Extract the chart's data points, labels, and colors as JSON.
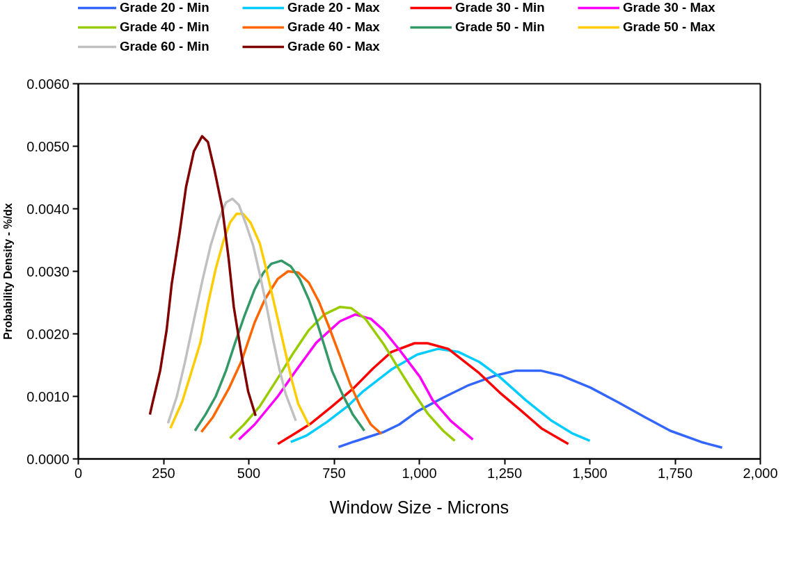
{
  "chart_data": {
    "type": "line",
    "xlabel": "Window Size - Microns",
    "ylabel": "Probability Density - %/dx",
    "legend": "top",
    "grid": false,
    "marker": "none",
    "line_style": "solid",
    "xlim": [
      0,
      2000
    ],
    "ylim": [
      0,
      0.006
    ],
    "xticks": [
      0,
      250,
      500,
      750,
      {
        "value": 1000,
        "label": "1,000"
      },
      {
        "value": 1250,
        "label": "1,250"
      },
      {
        "value": 1500,
        "label": "1,500"
      },
      {
        "value": 1750,
        "label": "1,750"
      },
      {
        "value": 2000,
        "label": "2,000"
      }
    ],
    "yticks": [
      {
        "value": 0,
        "label": "0.0000"
      },
      {
        "value": 0.001,
        "label": "0.0010"
      },
      {
        "value": 0.002,
        "label": "0.0020"
      },
      {
        "value": 0.003,
        "label": "0.0030"
      },
      {
        "value": 0.004,
        "label": "0.0040"
      },
      {
        "value": 0.005,
        "label": "0.0050"
      },
      {
        "value": 0.006,
        "label": "0.0060"
      }
    ],
    "series": [
      {
        "name": "Grade 20 - Min",
        "color": "#3366ff",
        "x": [
          763,
          805,
          850,
          895,
          941,
          994,
          1070,
          1145,
          1221,
          1282,
          1358,
          1418,
          1502,
          1585,
          1661,
          1736,
          1827,
          1888
        ],
        "values": [
          0.00019,
          0.00027,
          0.00035,
          0.00043,
          0.00055,
          0.00076,
          0.00098,
          0.00118,
          0.00133,
          0.00141,
          0.00141,
          0.00133,
          0.00114,
          0.0009,
          0.00067,
          0.00045,
          0.00027,
          0.00018
        ]
      },
      {
        "name": "Grade 20 - Max",
        "color": "#00ccff",
        "x": [
          623,
          668,
          729,
          789,
          835,
          918,
          994,
          1055,
          1115,
          1176,
          1236,
          1312,
          1388,
          1448,
          1500
        ],
        "values": [
          0.00027,
          0.00037,
          0.00059,
          0.00084,
          0.00108,
          0.00143,
          0.00167,
          0.00176,
          0.00171,
          0.00155,
          0.00131,
          0.00094,
          0.00061,
          0.00041,
          0.00029
        ]
      },
      {
        "name": "Grade 30 - Min",
        "color": "#ff0000",
        "x": [
          585,
          630,
          683,
          744,
          805,
          865,
          918,
          986,
          1024,
          1085,
          1176,
          1236,
          1297,
          1358,
          1437
        ],
        "values": [
          0.00024,
          0.00039,
          0.00057,
          0.00084,
          0.00112,
          0.00145,
          0.00171,
          0.00185,
          0.00185,
          0.00176,
          0.00137,
          0.00106,
          0.00078,
          0.00049,
          0.00024
        ]
      },
      {
        "name": "Grade 30 - Max",
        "color": "#ff00ff",
        "x": [
          471,
          517,
          585,
          638,
          698,
          767,
          812,
          858,
          895,
          941,
          1002,
          1039,
          1092,
          1157
        ],
        "values": [
          0.00031,
          0.00055,
          0.001,
          0.00141,
          0.00186,
          0.0022,
          0.00231,
          0.00224,
          0.00206,
          0.00175,
          0.00131,
          0.00094,
          0.00061,
          0.00031
        ]
      },
      {
        "name": "Grade 40 - Min",
        "color": "#99cc00",
        "x": [
          445,
          486,
          532,
          585,
          630,
          676,
          721,
          767,
          801,
          842,
          895,
          941,
          979,
          1024,
          1070,
          1104
        ],
        "values": [
          0.00033,
          0.00055,
          0.00084,
          0.00129,
          0.00169,
          0.00206,
          0.00231,
          0.00243,
          0.00241,
          0.00224,
          0.00184,
          0.00143,
          0.0011,
          0.00073,
          0.00045,
          0.00029
        ]
      },
      {
        "name": "Grade 40 - Max",
        "color": "#ff6600",
        "x": [
          361,
          395,
          441,
          479,
          517,
          547,
          585,
          615,
          645,
          676,
          706,
          736,
          767,
          797,
          827,
          858,
          889
        ],
        "values": [
          0.00043,
          0.00067,
          0.00112,
          0.00157,
          0.00218,
          0.00255,
          0.00288,
          0.003,
          0.00298,
          0.00282,
          0.00251,
          0.0021,
          0.00165,
          0.0012,
          0.00084,
          0.00055,
          0.0004
        ]
      },
      {
        "name": "Grade 50 - Min",
        "color": "#339966",
        "x": [
          342,
          373,
          403,
          433,
          460,
          486,
          517,
          543,
          566,
          596,
          623,
          649,
          676,
          698,
          721,
          744,
          774,
          805,
          839
        ],
        "values": [
          0.00045,
          0.00071,
          0.001,
          0.00141,
          0.00186,
          0.00227,
          0.00271,
          0.00298,
          0.00312,
          0.00317,
          0.00308,
          0.00288,
          0.00255,
          0.00222,
          0.00182,
          0.00141,
          0.00104,
          0.00071,
          0.00045
        ]
      },
      {
        "name": "Grade 50 - Max",
        "color": "#ffcc00",
        "x": [
          270,
          305,
          335,
          358,
          380,
          403,
          426,
          445,
          464,
          483,
          505,
          532,
          551,
          570,
          589,
          608,
          627,
          645,
          677
        ],
        "values": [
          0.00049,
          0.00092,
          0.00145,
          0.00186,
          0.00247,
          0.00304,
          0.00349,
          0.00378,
          0.00392,
          0.00392,
          0.00378,
          0.00345,
          0.00304,
          0.00259,
          0.00214,
          0.00169,
          0.00124,
          0.00088,
          0.00053
        ]
      },
      {
        "name": "Grade 60 - Min",
        "color": "#c0c0c0",
        "x": [
          263,
          289,
          312,
          339,
          365,
          388,
          411,
          433,
          452,
          471,
          490,
          513,
          532,
          551,
          570,
          589,
          608,
          638
        ],
        "values": [
          0.00057,
          0.001,
          0.00153,
          0.00222,
          0.00288,
          0.00341,
          0.00382,
          0.0041,
          0.00416,
          0.00406,
          0.00378,
          0.00341,
          0.00296,
          0.00247,
          0.00194,
          0.00145,
          0.00104,
          0.00061
        ]
      },
      {
        "name": "Grade 60 - Max",
        "color": "#800000",
        "x": [
          210,
          217,
          240,
          259,
          274,
          297,
          316,
          339,
          363,
          380,
          399,
          422,
          441,
          456,
          479,
          498,
          520
        ],
        "values": [
          0.00071,
          0.00088,
          0.00141,
          0.00206,
          0.0028,
          0.00361,
          0.00435,
          0.00492,
          0.00516,
          0.00507,
          0.00463,
          0.00402,
          0.0032,
          0.00243,
          0.00165,
          0.00108,
          0.00069
        ]
      }
    ]
  }
}
